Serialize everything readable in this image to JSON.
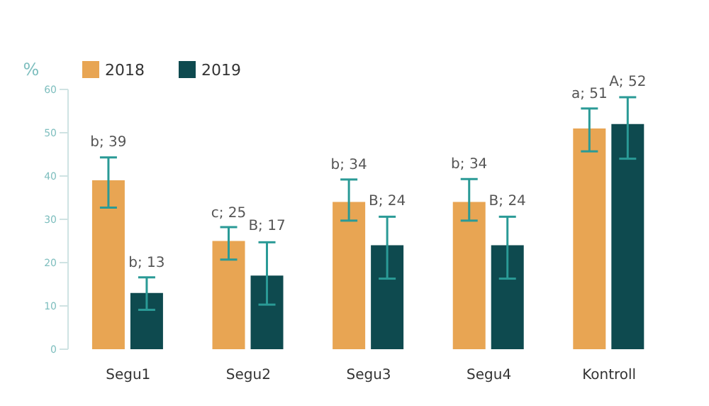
{
  "chart_data": {
    "type": "bar",
    "ylabel": "%",
    "categories": [
      "Segu1",
      "Segu2",
      "Segu3",
      "Segu4",
      "Kontroll"
    ],
    "series": [
      {
        "name": "2018",
        "color": "#e8a553",
        "values": [
          39,
          25,
          34,
          34,
          51
        ],
        "errors": [
          [
            32.7,
            44.3
          ],
          [
            20.7,
            28.2
          ],
          [
            29.7,
            39.2
          ],
          [
            29.7,
            39.3
          ],
          [
            45.7,
            55.6
          ]
        ],
        "value_labels": [
          "b; 39",
          "c; 25",
          "b; 34",
          "b; 34",
          "a; 51"
        ]
      },
      {
        "name": "2019",
        "color": "#0e4a4f",
        "values": [
          13,
          17,
          24,
          24,
          52
        ],
        "errors": [
          [
            9.1,
            16.6
          ],
          [
            10.3,
            24.7
          ],
          [
            16.3,
            30.6
          ],
          [
            16.3,
            30.6
          ],
          [
            44,
            58.2
          ]
        ],
        "value_labels": [
          "b; 13",
          "B; 17",
          "B; 24",
          "B; 24",
          "A; 52"
        ]
      }
    ],
    "ylim": [
      0,
      60
    ],
    "yticks": [
      0,
      10,
      20,
      30,
      40,
      50,
      60
    ],
    "grid": false,
    "legend": "top left"
  }
}
